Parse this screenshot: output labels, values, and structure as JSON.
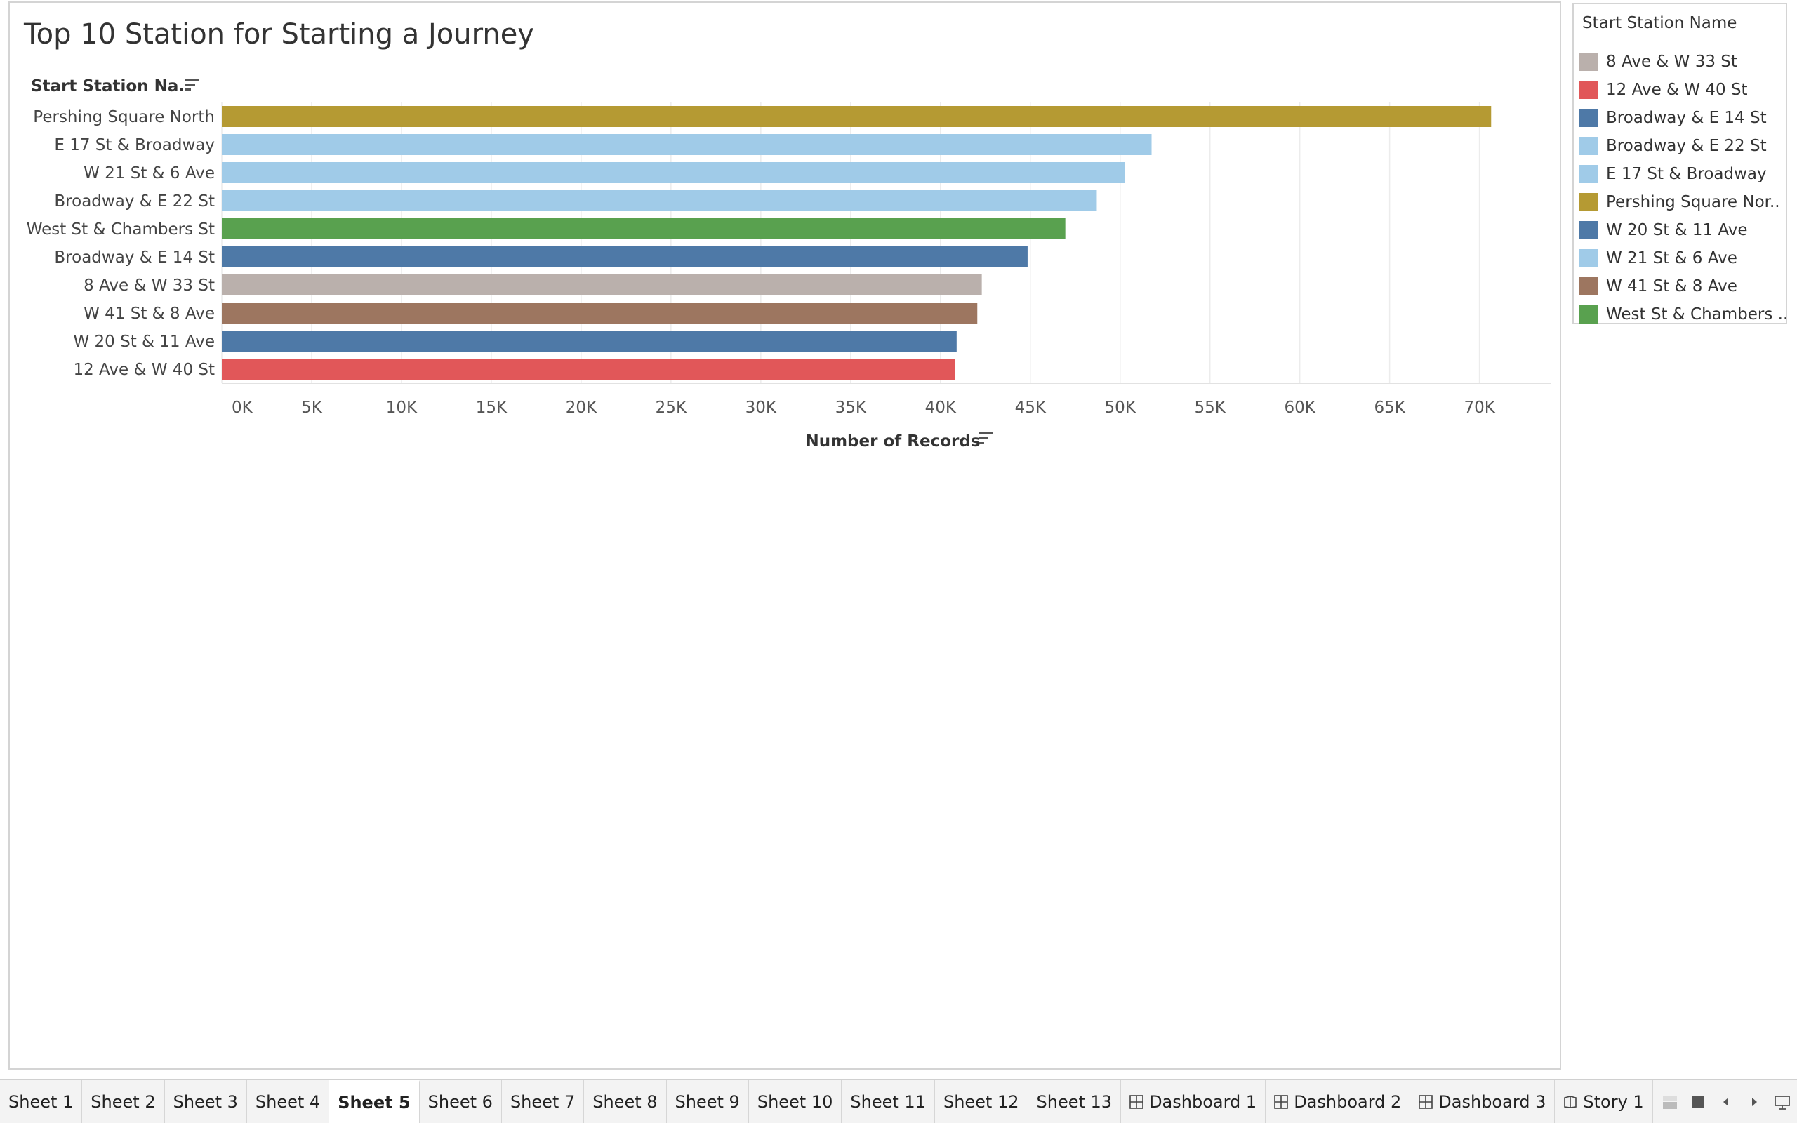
{
  "viz": {
    "title": "Top 10 Station for Starting a Journey"
  },
  "chart_data": {
    "type": "bar",
    "orientation": "horizontal",
    "title": "Top 10 Station for Starting a Journey",
    "ylabel": "Start Station Na..",
    "xlabel": "Number of Records",
    "xlim": [
      0,
      74000
    ],
    "x_ticks": [
      "0K",
      "5K",
      "10K",
      "15K",
      "20K",
      "25K",
      "30K",
      "35K",
      "40K",
      "45K",
      "50K",
      "55K",
      "60K",
      "65K",
      "70K"
    ],
    "x_tick_values": [
      0,
      5000,
      10000,
      15000,
      20000,
      25000,
      30000,
      35000,
      40000,
      45000,
      50000,
      55000,
      60000,
      65000,
      70000
    ],
    "grid": true,
    "categories": [
      "Pershing Square North",
      "E 17 St & Broadway",
      "W 21 St & 6 Ave",
      "Broadway & E 22 St",
      "West St & Chambers St",
      "Broadway & E 14 St",
      "8 Ave & W 33 St",
      "W 41 St & 8 Ave",
      "W 20 St & 11 Ave",
      "12 Ave & W 40 St"
    ],
    "values": [
      70650,
      51750,
      50250,
      48700,
      46950,
      44850,
      42300,
      42050,
      40900,
      40800
    ],
    "colors": [
      "#b59a33",
      "#a0cbe8",
      "#a0cbe8",
      "#a0cbe8",
      "#59a14f",
      "#4e79a7",
      "#bab0ac",
      "#9d7660",
      "#4e79a7",
      "#e15759"
    ]
  },
  "legend": {
    "title": "Start Station Name",
    "items": [
      {
        "label": "8 Ave & W 33 St",
        "color": "#bab0ac"
      },
      {
        "label": "12 Ave & W 40 St",
        "color": "#e15759"
      },
      {
        "label": "Broadway & E 14 St",
        "color": "#4e79a7"
      },
      {
        "label": "Broadway & E 22 St",
        "color": "#a0cbe8"
      },
      {
        "label": "E 17 St & Broadway",
        "color": "#a0cbe8"
      },
      {
        "label": "Pershing Square Nor..",
        "color": "#b59a33"
      },
      {
        "label": "W 20 St & 11 Ave",
        "color": "#4e79a7"
      },
      {
        "label": "W 21 St & 6 Ave",
        "color": "#a0cbe8"
      },
      {
        "label": "W 41 St & 8 Ave",
        "color": "#9d7660"
      },
      {
        "label": "West St & Chambers ..",
        "color": "#59a14f"
      }
    ]
  },
  "tabs": [
    {
      "label": "Sheet 1",
      "icon": "",
      "active": false
    },
    {
      "label": "Sheet 2",
      "icon": "",
      "active": false
    },
    {
      "label": "Sheet 3",
      "icon": "",
      "active": false
    },
    {
      "label": "Sheet 4",
      "icon": "",
      "active": false
    },
    {
      "label": "Sheet 5",
      "icon": "",
      "active": true
    },
    {
      "label": "Sheet 6",
      "icon": "",
      "active": false
    },
    {
      "label": "Sheet 7",
      "icon": "",
      "active": false
    },
    {
      "label": "Sheet 8",
      "icon": "",
      "active": false
    },
    {
      "label": "Sheet 9",
      "icon": "",
      "active": false
    },
    {
      "label": "Sheet 10",
      "icon": "",
      "active": false
    },
    {
      "label": "Sheet 11",
      "icon": "",
      "active": false
    },
    {
      "label": "Sheet 12",
      "icon": "",
      "active": false
    },
    {
      "label": "Sheet 13",
      "icon": "",
      "active": false
    },
    {
      "label": "Dashboard 1",
      "icon": "dashboard-icon",
      "active": false
    },
    {
      "label": "Dashboard 2",
      "icon": "dashboard-icon",
      "active": false
    },
    {
      "label": "Dashboard 3",
      "icon": "dashboard-icon",
      "active": false
    },
    {
      "label": "Story 1",
      "icon": "story-icon",
      "active": false
    }
  ],
  "tab_controls": [
    {
      "name": "show-filmstrip-icon"
    },
    {
      "name": "show-tabs-icon"
    },
    {
      "name": "scroll-tabs-left-icon"
    },
    {
      "name": "scroll-tabs-right-icon"
    },
    {
      "name": "presentation-mode-icon"
    }
  ],
  "icons": {
    "sort": "sort-descending-icon"
  }
}
